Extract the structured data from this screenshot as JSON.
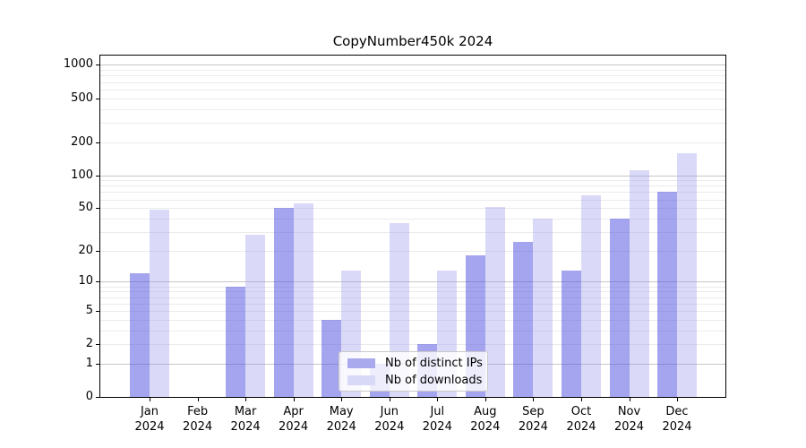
{
  "title": "CopyNumber450k 2024",
  "colors": {
    "distinct_ips_bar": "#a9a9ee",
    "downloads_bar": "#d8d8f7",
    "grid_major": "#c6c6c6",
    "grid_minor": "#ebebeb",
    "axis": "#000000"
  },
  "chart_data": {
    "type": "bar",
    "title": "CopyNumber450k 2024",
    "categories": [
      "Jan 2024",
      "Feb 2024",
      "Mar 2024",
      "Apr 2024",
      "May 2024",
      "Jun 2024",
      "Jul 2024",
      "Aug 2024",
      "Sep 2024",
      "Oct 2024",
      "Nov 2024",
      "Dec 2024"
    ],
    "x_tick_line1": [
      "Jan",
      "Feb",
      "Mar",
      "Apr",
      "May",
      "Jun",
      "Jul",
      "Aug",
      "Sep",
      "Oct",
      "Nov",
      "Dec"
    ],
    "x_tick_line2": [
      "2024",
      "2024",
      "2024",
      "2024",
      "2024",
      "2024",
      "2024",
      "2024",
      "2024",
      "2024",
      "2024",
      "2024"
    ],
    "series": [
      {
        "name": "Nb of distinct IPs",
        "color": "#a9a9ee",
        "values": [
          12,
          0,
          9,
          50,
          4,
          1,
          2,
          18,
          24,
          13,
          40,
          70
        ]
      },
      {
        "name": "Nb of downloads",
        "color": "#d8d8f7",
        "values": [
          48,
          0,
          28,
          55,
          13,
          36,
          13,
          51,
          40,
          65,
          110,
          160
        ]
      }
    ],
    "xlabel": "",
    "ylabel": "",
    "y_axis": {
      "scale": "log1p",
      "tick_values": [
        0,
        1,
        2,
        5,
        10,
        20,
        50,
        100,
        200,
        500,
        1000
      ],
      "ylim": [
        0,
        1220
      ],
      "minor_gridlines": [
        2,
        3,
        4,
        5,
        6,
        7,
        8,
        9,
        20,
        30,
        40,
        50,
        60,
        70,
        80,
        90,
        200,
        300,
        400,
        500,
        600,
        700,
        800,
        900
      ],
      "major_gridlines": [
        1,
        10,
        100,
        1000
      ]
    },
    "grid": "horizontal log minor+major",
    "legend": {
      "position": "lower center",
      "entries": [
        "Nb of distinct IPs",
        "Nb of downloads"
      ]
    }
  }
}
